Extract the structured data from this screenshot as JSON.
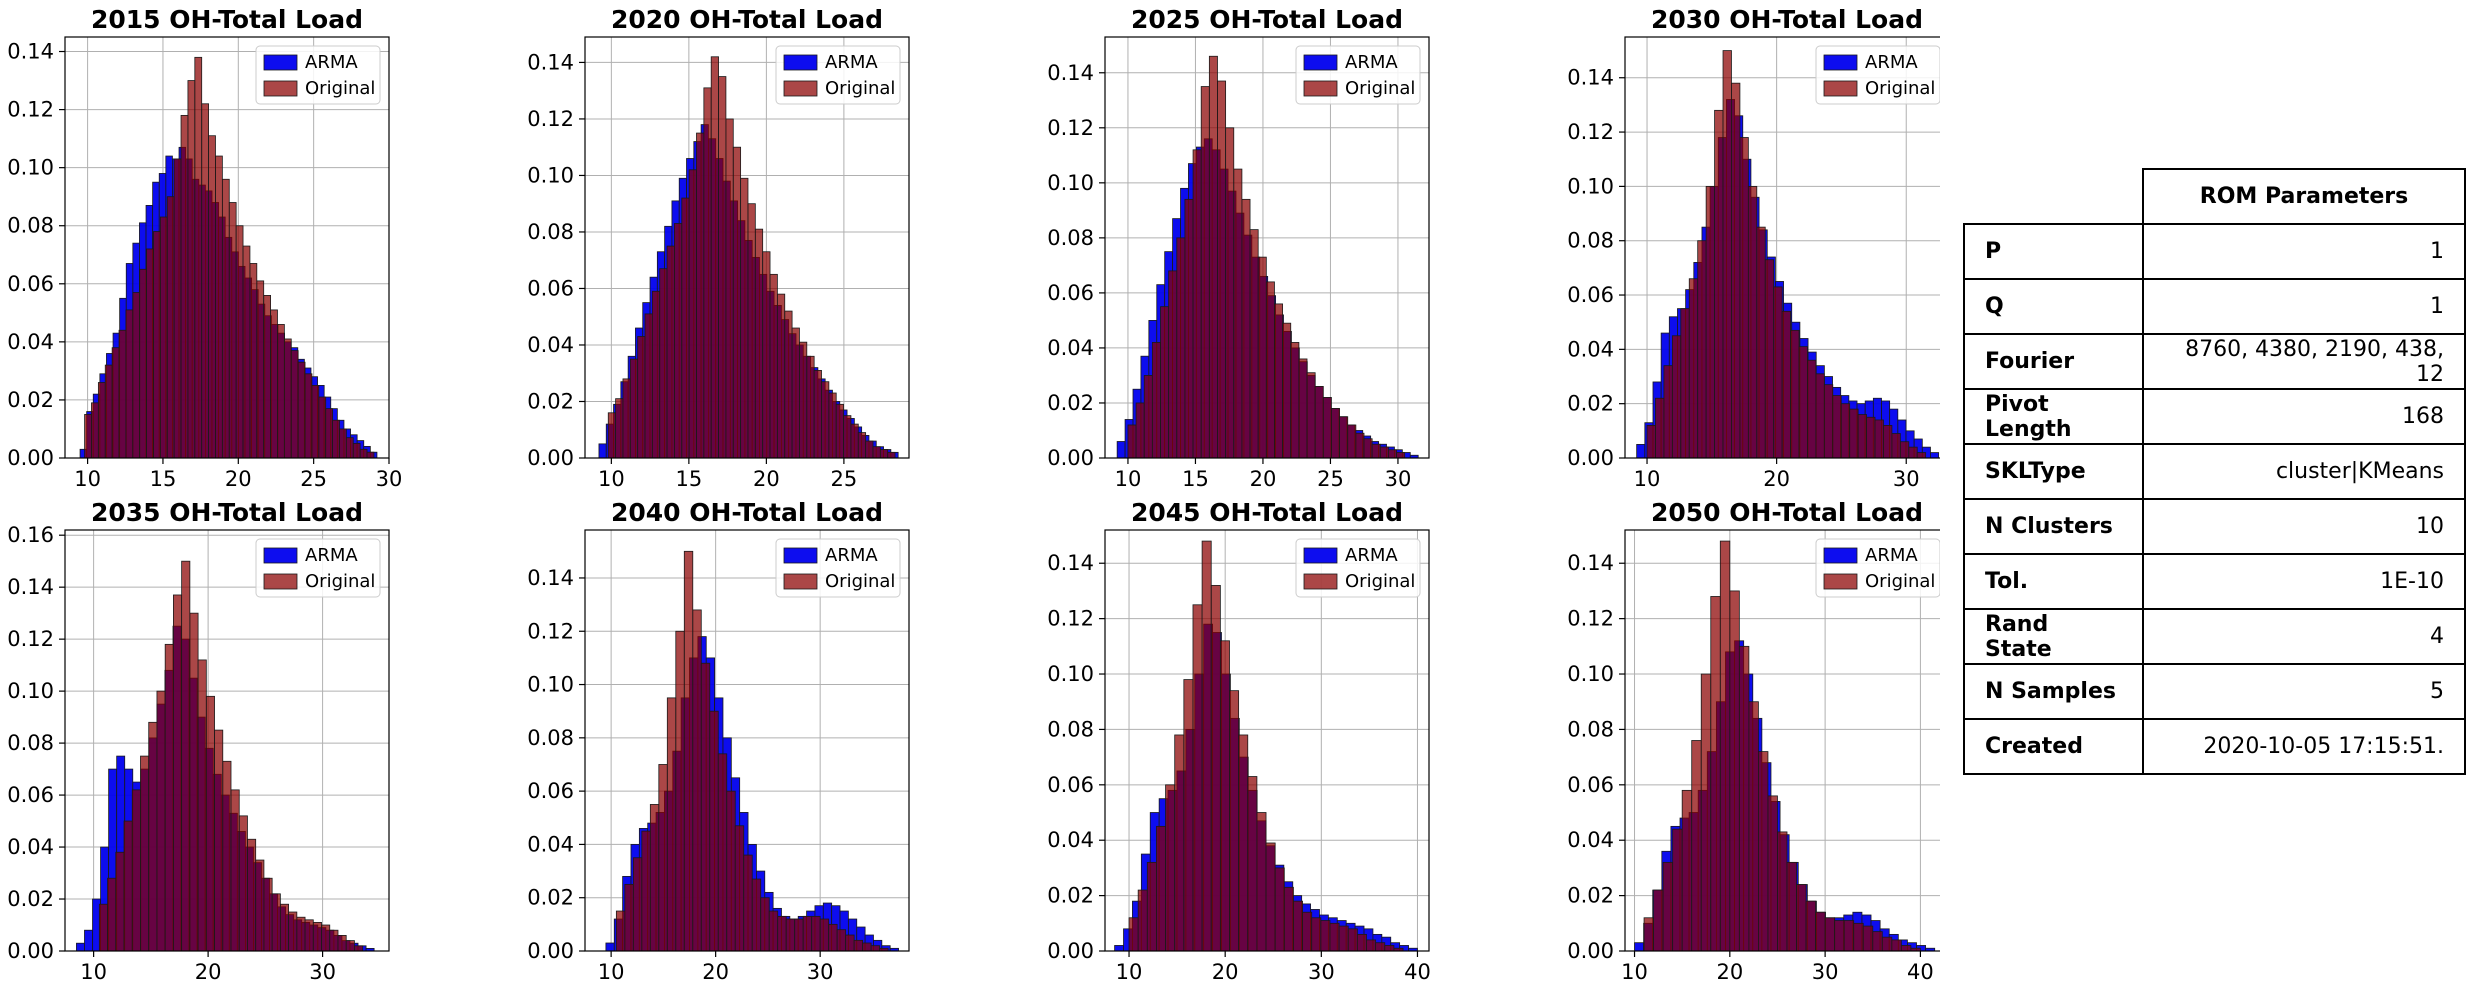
{
  "legend_labels": [
    "ARMA",
    "Original"
  ],
  "colors": {
    "arma": "#0000ee",
    "original": "#8b0000",
    "grid": "#b0b0b0"
  },
  "chart_data": [
    {
      "type": "bar",
      "title": "2015 OH-Total Load",
      "xlim": [
        8.5,
        30
      ],
      "ylim": [
        0,
        0.145
      ],
      "xticks": [
        10,
        15,
        20,
        25,
        30
      ],
      "yticks": [
        0,
        0.02,
        0.04,
        0.06,
        0.08,
        0.1,
        0.12,
        0.14
      ],
      "grid": true,
      "legend": "top-right",
      "series": [
        {
          "name": "ARMA",
          "x_range": [
            9.5,
            29.2
          ],
          "values": [
            0.003,
            0.016,
            0.022,
            0.029,
            0.036,
            0.043,
            0.055,
            0.067,
            0.074,
            0.081,
            0.087,
            0.095,
            0.098,
            0.104,
            0.103,
            0.107,
            0.103,
            0.096,
            0.094,
            0.092,
            0.088,
            0.083,
            0.076,
            0.071,
            0.066,
            0.062,
            0.058,
            0.053,
            0.049,
            0.046,
            0.043,
            0.04,
            0.038,
            0.034,
            0.031,
            0.028,
            0.025,
            0.021,
            0.017,
            0.013,
            0.01,
            0.008,
            0.006,
            0.004,
            0.002
          ]
        },
        {
          "name": "Original",
          "x_range": [
            9.8,
            29.0
          ],
          "values": [
            0.015,
            0.019,
            0.026,
            0.032,
            0.038,
            0.044,
            0.051,
            0.057,
            0.065,
            0.072,
            0.078,
            0.083,
            0.09,
            0.103,
            0.118,
            0.13,
            0.138,
            0.122,
            0.111,
            0.104,
            0.096,
            0.088,
            0.08,
            0.073,
            0.067,
            0.061,
            0.056,
            0.051,
            0.046,
            0.041,
            0.037,
            0.033,
            0.029,
            0.025,
            0.021,
            0.017,
            0.013,
            0.01,
            0.007,
            0.005,
            0.003,
            0.002
          ]
        }
      ]
    },
    {
      "type": "bar",
      "title": "2020 OH-Total Load",
      "xlim": [
        8.3,
        29.2
      ],
      "ylim": [
        0,
        0.149
      ],
      "xticks": [
        10,
        15,
        20,
        25
      ],
      "yticks": [
        0,
        0.02,
        0.04,
        0.06,
        0.08,
        0.1,
        0.12,
        0.14
      ],
      "grid": true,
      "legend": "top-right",
      "series": [
        {
          "name": "ARMA",
          "x_range": [
            9.2,
            28.5
          ],
          "values": [
            0.005,
            0.012,
            0.019,
            0.027,
            0.036,
            0.046,
            0.055,
            0.064,
            0.073,
            0.082,
            0.091,
            0.099,
            0.106,
            0.112,
            0.118,
            0.113,
            0.106,
            0.098,
            0.091,
            0.084,
            0.077,
            0.071,
            0.065,
            0.059,
            0.054,
            0.049,
            0.044,
            0.04,
            0.036,
            0.032,
            0.028,
            0.024,
            0.02,
            0.017,
            0.014,
            0.011,
            0.008,
            0.006,
            0.004,
            0.003,
            0.002
          ]
        },
        {
          "name": "Original",
          "x_range": [
            9.8,
            28.3
          ],
          "values": [
            0.016,
            0.021,
            0.028,
            0.035,
            0.043,
            0.051,
            0.059,
            0.067,
            0.075,
            0.083,
            0.092,
            0.102,
            0.115,
            0.131,
            0.142,
            0.135,
            0.12,
            0.11,
            0.099,
            0.09,
            0.081,
            0.073,
            0.065,
            0.058,
            0.052,
            0.046,
            0.041,
            0.036,
            0.031,
            0.027,
            0.023,
            0.019,
            0.015,
            0.012,
            0.009,
            0.006,
            0.004,
            0.003,
            0.002
          ]
        }
      ]
    },
    {
      "type": "bar",
      "title": "2025 OH-Total Load",
      "xlim": [
        8.3,
        32.3
      ],
      "ylim": [
        0,
        0.153
      ],
      "xticks": [
        10,
        15,
        20,
        25,
        30
      ],
      "yticks": [
        0,
        0.02,
        0.04,
        0.06,
        0.08,
        0.1,
        0.12,
        0.14
      ],
      "grid": true,
      "legend": "top-right",
      "series": [
        {
          "name": "ARMA",
          "x_range": [
            9.2,
            31.5
          ],
          "values": [
            0.006,
            0.014,
            0.025,
            0.037,
            0.05,
            0.063,
            0.075,
            0.087,
            0.098,
            0.107,
            0.113,
            0.116,
            0.112,
            0.105,
            0.097,
            0.089,
            0.081,
            0.073,
            0.066,
            0.059,
            0.052,
            0.046,
            0.04,
            0.035,
            0.03,
            0.026,
            0.022,
            0.018,
            0.015,
            0.012,
            0.01,
            0.008,
            0.006,
            0.005,
            0.004,
            0.003,
            0.002,
            0.001
          ]
        },
        {
          "name": "Original",
          "x_range": [
            10.0,
            30.5
          ],
          "values": [
            0.012,
            0.02,
            0.03,
            0.042,
            0.055,
            0.068,
            0.08,
            0.094,
            0.112,
            0.135,
            0.146,
            0.137,
            0.12,
            0.105,
            0.094,
            0.083,
            0.073,
            0.064,
            0.056,
            0.049,
            0.042,
            0.036,
            0.031,
            0.026,
            0.022,
            0.018,
            0.015,
            0.012,
            0.009,
            0.007,
            0.005,
            0.004,
            0.003,
            0.002
          ]
        }
      ]
    },
    {
      "type": "bar",
      "title": "2030 OH-Total Load",
      "xlim": [
        8.3,
        33.3
      ],
      "ylim": [
        0,
        0.155
      ],
      "xticks": [
        10,
        20,
        30
      ],
      "yticks": [
        0,
        0.02,
        0.04,
        0.06,
        0.08,
        0.1,
        0.12,
        0.14
      ],
      "grid": true,
      "legend": "top-right",
      "series": [
        {
          "name": "ARMA",
          "x_range": [
            9.2,
            32.5
          ],
          "values": [
            0.005,
            0.013,
            0.028,
            0.046,
            0.052,
            0.055,
            0.062,
            0.072,
            0.085,
            0.1,
            0.118,
            0.132,
            0.126,
            0.11,
            0.096,
            0.084,
            0.074,
            0.065,
            0.057,
            0.05,
            0.044,
            0.039,
            0.034,
            0.03,
            0.026,
            0.023,
            0.021,
            0.02,
            0.021,
            0.022,
            0.021,
            0.018,
            0.014,
            0.01,
            0.007,
            0.004,
            0.002
          ]
        },
        {
          "name": "Original",
          "x_range": [
            10.0,
            31.5
          ],
          "values": [
            0.012,
            0.022,
            0.034,
            0.045,
            0.055,
            0.066,
            0.08,
            0.1,
            0.128,
            0.15,
            0.138,
            0.118,
            0.1,
            0.085,
            0.073,
            0.063,
            0.054,
            0.047,
            0.041,
            0.036,
            0.031,
            0.027,
            0.023,
            0.02,
            0.018,
            0.016,
            0.015,
            0.014,
            0.012,
            0.009,
            0.006,
            0.004,
            0.002
          ]
        }
      ]
    },
    {
      "type": "bar",
      "title": "2035 OH-Total Load",
      "xlim": [
        7.5,
        35.8
      ],
      "ylim": [
        0,
        0.162
      ],
      "xticks": [
        10,
        20,
        30
      ],
      "yticks": [
        0,
        0.02,
        0.04,
        0.06,
        0.08,
        0.1,
        0.12,
        0.14,
        0.16
      ],
      "grid": true,
      "legend": "top-right",
      "series": [
        {
          "name": "ARMA",
          "x_range": [
            8.5,
            34.5
          ],
          "values": [
            0.003,
            0.008,
            0.02,
            0.04,
            0.07,
            0.075,
            0.07,
            0.065,
            0.07,
            0.082,
            0.095,
            0.108,
            0.125,
            0.12,
            0.105,
            0.09,
            0.078,
            0.068,
            0.06,
            0.053,
            0.046,
            0.04,
            0.034,
            0.028,
            0.022,
            0.017,
            0.014,
            0.012,
            0.011,
            0.01,
            0.009,
            0.008,
            0.006,
            0.004,
            0.003,
            0.002,
            0.001
          ]
        },
        {
          "name": "Original",
          "x_range": [
            10.5,
            33.5
          ],
          "values": [
            0.018,
            0.028,
            0.038,
            0.05,
            0.062,
            0.075,
            0.088,
            0.1,
            0.118,
            0.137,
            0.15,
            0.13,
            0.112,
            0.098,
            0.085,
            0.073,
            0.062,
            0.052,
            0.043,
            0.035,
            0.028,
            0.022,
            0.018,
            0.015,
            0.013,
            0.012,
            0.011,
            0.01,
            0.008,
            0.006,
            0.004,
            0.002
          ]
        }
      ]
    },
    {
      "type": "bar",
      "title": "2040 OH-Total Load",
      "xlim": [
        7.5,
        38.5
      ],
      "ylim": [
        0,
        0.158
      ],
      "xticks": [
        10,
        20,
        30
      ],
      "yticks": [
        0.0,
        0.02,
        0.04,
        0.06,
        0.08,
        0.1,
        0.12,
        0.14
      ],
      "grid": true,
      "legend": "top-right",
      "series": [
        {
          "name": "ARMA",
          "x_range": [
            9.5,
            37.5
          ],
          "values": [
            0.003,
            0.012,
            0.028,
            0.04,
            0.046,
            0.048,
            0.052,
            0.06,
            0.075,
            0.095,
            0.11,
            0.118,
            0.11,
            0.095,
            0.08,
            0.065,
            0.052,
            0.04,
            0.03,
            0.022,
            0.016,
            0.013,
            0.012,
            0.013,
            0.015,
            0.017,
            0.018,
            0.017,
            0.015,
            0.012,
            0.009,
            0.006,
            0.004,
            0.002,
            0.001
          ]
        },
        {
          "name": "Original",
          "x_range": [
            10.5,
            36.5
          ],
          "values": [
            0.015,
            0.025,
            0.035,
            0.045,
            0.055,
            0.07,
            0.095,
            0.12,
            0.15,
            0.128,
            0.108,
            0.09,
            0.074,
            0.06,
            0.047,
            0.036,
            0.027,
            0.02,
            0.015,
            0.013,
            0.012,
            0.012,
            0.013,
            0.013,
            0.012,
            0.01,
            0.008,
            0.006,
            0.004,
            0.003,
            0.002,
            0.001
          ]
        }
      ]
    },
    {
      "type": "bar",
      "title": "2045 OH-Total Load",
      "xlim": [
        7.5,
        41.2
      ],
      "ylim": [
        0,
        0.152
      ],
      "xticks": [
        10,
        20,
        30,
        40
      ],
      "yticks": [
        0,
        0.02,
        0.04,
        0.06,
        0.08,
        0.1,
        0.12,
        0.14
      ],
      "grid": true,
      "legend": "top-right",
      "series": [
        {
          "name": "ARMA",
          "x_range": [
            8.5,
            40.0
          ],
          "values": [
            0.002,
            0.008,
            0.018,
            0.035,
            0.05,
            0.055,
            0.058,
            0.065,
            0.08,
            0.1,
            0.118,
            0.115,
            0.1,
            0.084,
            0.07,
            0.058,
            0.047,
            0.038,
            0.031,
            0.025,
            0.02,
            0.017,
            0.015,
            0.013,
            0.012,
            0.011,
            0.01,
            0.009,
            0.008,
            0.006,
            0.005,
            0.003,
            0.002,
            0.001
          ]
        },
        {
          "name": "Original",
          "x_range": [
            10.0,
            38.5
          ],
          "values": [
            0.012,
            0.022,
            0.032,
            0.045,
            0.06,
            0.078,
            0.098,
            0.125,
            0.148,
            0.132,
            0.112,
            0.094,
            0.078,
            0.063,
            0.05,
            0.039,
            0.03,
            0.023,
            0.018,
            0.014,
            0.012,
            0.011,
            0.01,
            0.009,
            0.008,
            0.006,
            0.004,
            0.003,
            0.002,
            0.001
          ]
        }
      ]
    },
    {
      "type": "bar",
      "title": "2050 OH-Total Load",
      "xlim": [
        9.0,
        43.0
      ],
      "ylim": [
        0,
        0.152
      ],
      "xticks": [
        10,
        20,
        30,
        40
      ],
      "yticks": [
        0,
        0.02,
        0.04,
        0.06,
        0.08,
        0.1,
        0.12,
        0.14
      ],
      "grid": true,
      "legend": "top-right",
      "series": [
        {
          "name": "ARMA",
          "x_range": [
            10.0,
            41.5
          ],
          "values": [
            0.003,
            0.01,
            0.022,
            0.036,
            0.045,
            0.048,
            0.05,
            0.058,
            0.072,
            0.09,
            0.108,
            0.112,
            0.1,
            0.084,
            0.068,
            0.054,
            0.042,
            0.032,
            0.024,
            0.018,
            0.014,
            0.012,
            0.012,
            0.013,
            0.014,
            0.013,
            0.011,
            0.008,
            0.006,
            0.004,
            0.003,
            0.002,
            0.001
          ]
        },
        {
          "name": "Original",
          "x_range": [
            11.0,
            40.0
          ],
          "values": [
            0.012,
            0.022,
            0.032,
            0.044,
            0.058,
            0.076,
            0.1,
            0.128,
            0.148,
            0.13,
            0.11,
            0.09,
            0.072,
            0.056,
            0.043,
            0.032,
            0.024,
            0.018,
            0.014,
            0.012,
            0.011,
            0.011,
            0.01,
            0.009,
            0.007,
            0.005,
            0.004,
            0.002,
            0.001
          ]
        }
      ]
    }
  ],
  "param_table": {
    "header": "ROM Parameters",
    "rows": [
      {
        "key": "P",
        "value": "1"
      },
      {
        "key": "Q",
        "value": "1"
      },
      {
        "key": "Fourier",
        "value": "8760, 4380, 2190, 438, 12"
      },
      {
        "key": "Pivot Length",
        "value": "168"
      },
      {
        "key": "SKLType",
        "value": "cluster|KMeans"
      },
      {
        "key": "N Clusters",
        "value": "10"
      },
      {
        "key": "Tol.",
        "value": "1E-10"
      },
      {
        "key": "Rand State",
        "value": "4"
      },
      {
        "key": "N Samples",
        "value": "5"
      },
      {
        "key": "Created",
        "value": "2020-10-05 17:15:51."
      }
    ]
  }
}
